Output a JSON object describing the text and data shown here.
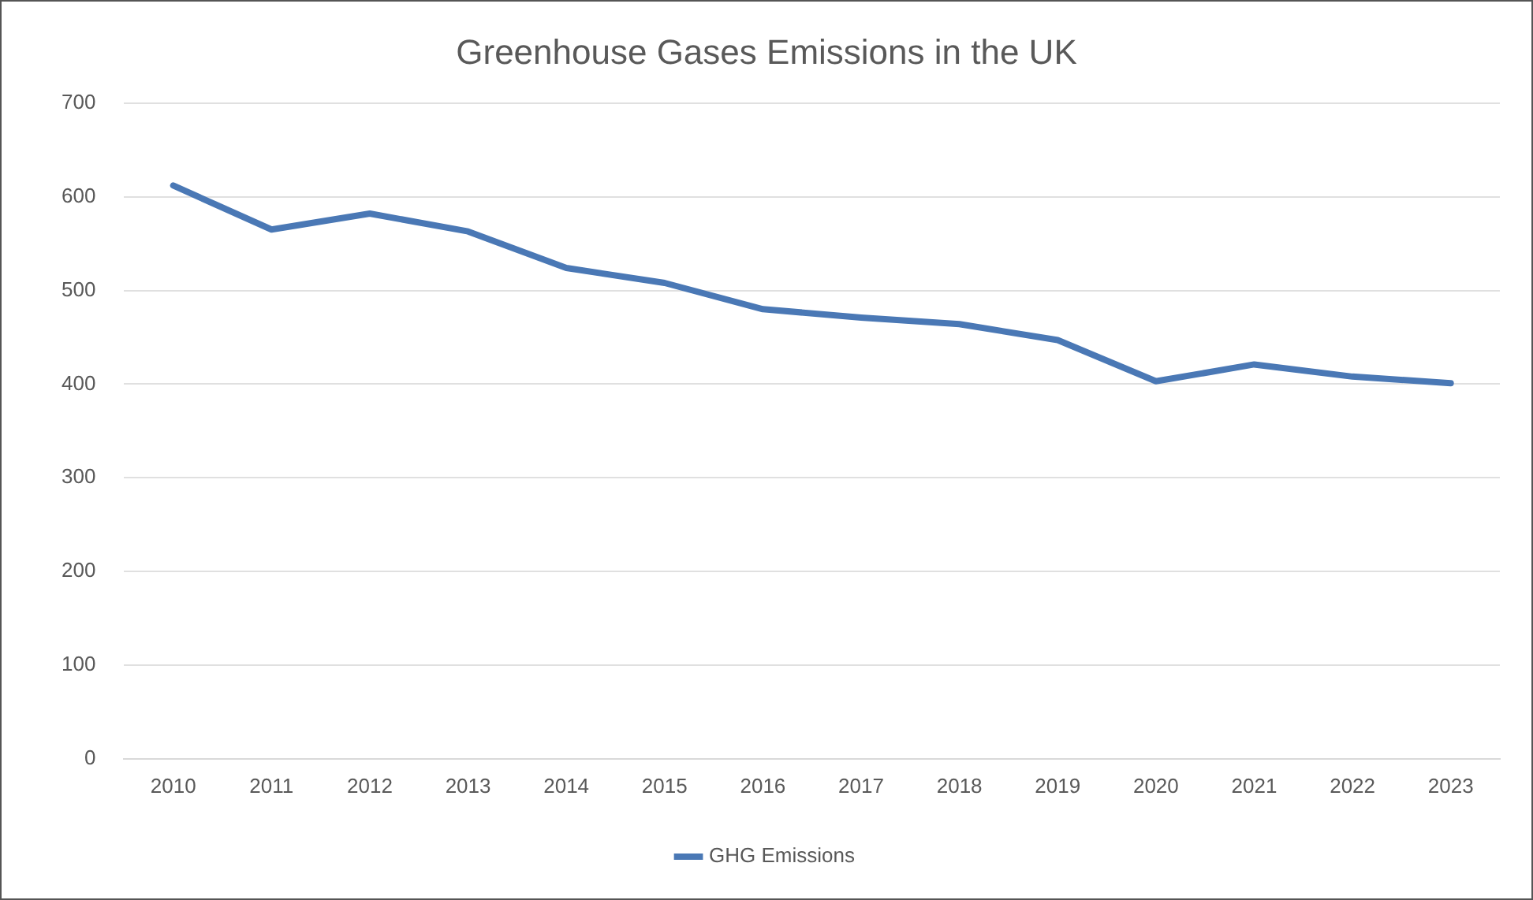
{
  "chart_data": {
    "type": "line",
    "title": "Greenhouse Gases Emissions in the UK",
    "categories": [
      "2010",
      "2011",
      "2012",
      "2013",
      "2014",
      "2015",
      "2016",
      "2017",
      "2018",
      "2019",
      "2020",
      "2021",
      "2022",
      "2023"
    ],
    "series": [
      {
        "name": "GHG Emissions",
        "color": "#4a78b5",
        "values": [
          612,
          565,
          582,
          563,
          524,
          508,
          480,
          471,
          464,
          447,
          403,
          421,
          408,
          401
        ]
      }
    ],
    "ylim": [
      0,
      700
    ],
    "yticks": [
      0,
      100,
      200,
      300,
      400,
      500,
      600,
      700
    ],
    "grid": "y",
    "legend": "bottom",
    "marker": "none",
    "line_style": "solid"
  }
}
